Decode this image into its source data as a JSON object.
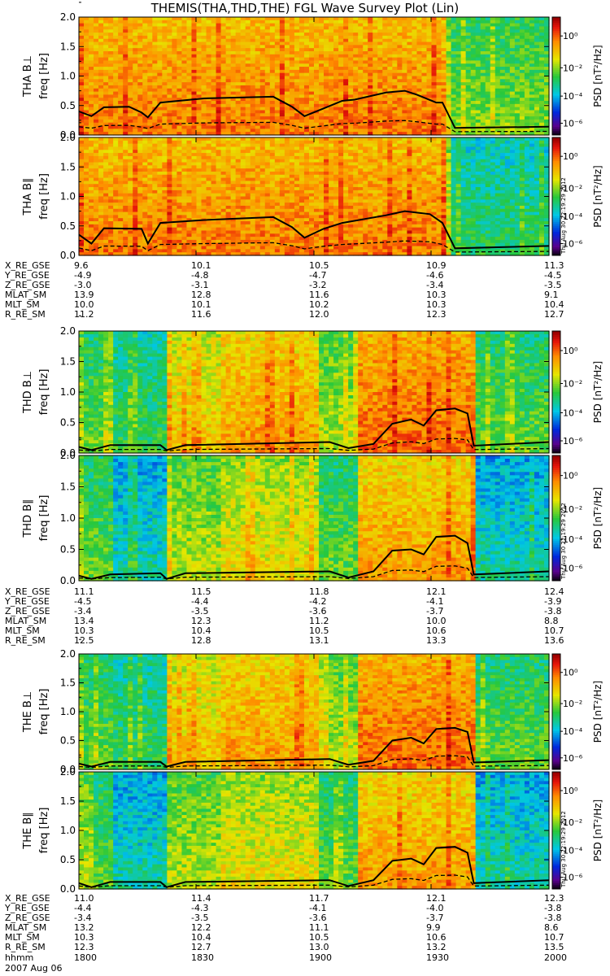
{
  "title": "THEMIS(THA,THD,THE) FGL Wave Survey Plot (Lin)",
  "colorbar_label": "PSD [nT²/Hz]",
  "colorbar_ticks": [
    "10⁰",
    "10⁻²",
    "10⁻⁴",
    "10⁻⁶"
  ],
  "y_axis_label": "freq [Hz]",
  "y_ticks": [
    "0.0",
    "0.5",
    "1.0",
    "1.5",
    "2.0"
  ],
  "stamp": "Thu Aug 30 22:19:29 2012",
  "date_label": "2007 Aug 06",
  "x_row_label": "hhmm",
  "x_times": [
    "1800",
    "1830",
    "1900",
    "1930",
    "2000"
  ],
  "chart_data": [
    {
      "type": "heatmap",
      "panels": [
        {
          "id": "THA_perp",
          "probe_label": "THA B⊥",
          "ylim": [
            0,
            2.0
          ],
          "ylabel": "freq [Hz]",
          "line_solid": [
            [
              0,
              0.4
            ],
            [
              2,
              0.32
            ],
            [
              4,
              0.47
            ],
            [
              8,
              0.48
            ],
            [
              10,
              0.38
            ],
            [
              11,
              0.3
            ],
            [
              13,
              0.55
            ],
            [
              20,
              0.62
            ],
            [
              31,
              0.65
            ],
            [
              34,
              0.48
            ],
            [
              36,
              0.32
            ],
            [
              39,
              0.45
            ],
            [
              42,
              0.58
            ],
            [
              44,
              0.6
            ],
            [
              49,
              0.72
            ],
            [
              52,
              0.75
            ],
            [
              54,
              0.68
            ],
            [
              57,
              0.55
            ],
            [
              58,
              0.55
            ],
            [
              60,
              0.12
            ],
            [
              75,
              0.14
            ]
          ]
        },
        {
          "id": "THA_par",
          "probe_label": "THA B∥",
          "ylim": [
            0,
            2.0
          ],
          "ylabel": "freq [Hz]",
          "line_solid": [
            [
              0,
              0.35
            ],
            [
              2,
              0.2
            ],
            [
              4,
              0.46
            ],
            [
              10,
              0.45
            ],
            [
              11,
              0.2
            ],
            [
              13,
              0.55
            ],
            [
              20,
              0.6
            ],
            [
              31,
              0.65
            ],
            [
              34,
              0.48
            ],
            [
              36,
              0.3
            ],
            [
              39,
              0.45
            ],
            [
              42,
              0.55
            ],
            [
              49,
              0.68
            ],
            [
              52,
              0.75
            ],
            [
              56,
              0.7
            ],
            [
              58,
              0.55
            ],
            [
              60,
              0.12
            ],
            [
              75,
              0.16
            ]
          ]
        },
        {
          "id": "THD_perp",
          "probe_label": "THD B⊥",
          "ylim": [
            0,
            2.0
          ],
          "ylabel": "freq [Hz]",
          "line_solid": [
            [
              0,
              0.1
            ],
            [
              2,
              0.05
            ],
            [
              5,
              0.13
            ],
            [
              13,
              0.13
            ],
            [
              14,
              0.05
            ],
            [
              17,
              0.13
            ],
            [
              40,
              0.18
            ],
            [
              43,
              0.08
            ],
            [
              47,
              0.15
            ],
            [
              50,
              0.48
            ],
            [
              53,
              0.55
            ],
            [
              55,
              0.45
            ],
            [
              57,
              0.7
            ],
            [
              60,
              0.73
            ],
            [
              62,
              0.65
            ],
            [
              63,
              0.12
            ],
            [
              75,
              0.18
            ]
          ]
        },
        {
          "id": "THD_par",
          "probe_label": "THD B∥",
          "ylim": [
            0,
            2.0
          ],
          "ylabel": "freq [Hz]",
          "line_solid": [
            [
              0,
              0.08
            ],
            [
              2,
              0.03
            ],
            [
              5,
              0.1
            ],
            [
              13,
              0.12
            ],
            [
              14,
              0.03
            ],
            [
              17,
              0.12
            ],
            [
              40,
              0.15
            ],
            [
              43,
              0.05
            ],
            [
              47,
              0.15
            ],
            [
              50,
              0.48
            ],
            [
              53,
              0.5
            ],
            [
              55,
              0.42
            ],
            [
              57,
              0.7
            ],
            [
              60,
              0.72
            ],
            [
              62,
              0.6
            ],
            [
              63,
              0.1
            ],
            [
              75,
              0.15
            ]
          ]
        },
        {
          "id": "THE_perp",
          "probe_label": "THE B⊥",
          "ylim": [
            0,
            2.0
          ],
          "ylabel": "freq [Hz]",
          "line_solid": [
            [
              0,
              0.1
            ],
            [
              2,
              0.05
            ],
            [
              5,
              0.13
            ],
            [
              13,
              0.13
            ],
            [
              14,
              0.05
            ],
            [
              17,
              0.13
            ],
            [
              40,
              0.18
            ],
            [
              43,
              0.08
            ],
            [
              47,
              0.15
            ],
            [
              50,
              0.5
            ],
            [
              53,
              0.55
            ],
            [
              55,
              0.45
            ],
            [
              57,
              0.7
            ],
            [
              60,
              0.72
            ],
            [
              62,
              0.65
            ],
            [
              63,
              0.12
            ],
            [
              75,
              0.16
            ]
          ]
        },
        {
          "id": "THE_par",
          "probe_label": "THE B∥",
          "ylim": [
            0,
            2.0
          ],
          "ylabel": "freq [Hz]",
          "line_solid": [
            [
              0,
              0.1
            ],
            [
              2,
              0.03
            ],
            [
              5,
              0.12
            ],
            [
              13,
              0.12
            ],
            [
              14,
              0.03
            ],
            [
              17,
              0.12
            ],
            [
              40,
              0.15
            ],
            [
              43,
              0.05
            ],
            [
              47,
              0.15
            ],
            [
              50,
              0.48
            ],
            [
              53,
              0.52
            ],
            [
              55,
              0.42
            ],
            [
              57,
              0.7
            ],
            [
              60,
              0.72
            ],
            [
              62,
              0.62
            ],
            [
              63,
              0.1
            ],
            [
              75,
              0.15
            ]
          ]
        }
      ],
      "xlim": [
        0,
        75
      ],
      "colorbar": {
        "scale": "log",
        "range": [
          "1e-6",
          "1e1"
        ]
      }
    }
  ],
  "orbit_blocks": [
    {
      "rows": [
        {
          "label": "X_RE_GSE",
          "values": [
            "9.6",
            "10.1",
            "10.5",
            "10.9",
            "11.3"
          ]
        },
        {
          "label": "Y_RE_GSE",
          "values": [
            "-4.9",
            "-4.8",
            "-4.7",
            "-4.6",
            "-4.5"
          ]
        },
        {
          "label": "Z_RE_GSE",
          "values": [
            "-3.0",
            "-3.1",
            "-3.2",
            "-3.4",
            "-3.5"
          ]
        },
        {
          "label": "MLAT_SM",
          "values": [
            "13.9",
            "12.8",
            "11.6",
            "10.3",
            "9.1"
          ]
        },
        {
          "label": "MLT_SM",
          "values": [
            "10.0",
            "10.1",
            "10.2",
            "10.3",
            "10.4"
          ]
        },
        {
          "label": "R_RE_SM",
          "values": [
            "11.2",
            "11.6",
            "12.0",
            "12.3",
            "12.7"
          ]
        }
      ]
    },
    {
      "rows": [
        {
          "label": "X_RE_GSE",
          "values": [
            "11.1",
            "11.5",
            "11.8",
            "12.1",
            "12.4"
          ]
        },
        {
          "label": "Y_RE_GSE",
          "values": [
            "-4.5",
            "-4.4",
            "-4.2",
            "-4.1",
            "-3.9"
          ]
        },
        {
          "label": "Z_RE_GSE",
          "values": [
            "-3.4",
            "-3.5",
            "-3.6",
            "-3.7",
            "-3.8"
          ]
        },
        {
          "label": "MLAT_SM",
          "values": [
            "13.4",
            "12.3",
            "11.2",
            "10.0",
            "8.8"
          ]
        },
        {
          "label": "MLT_SM",
          "values": [
            "10.3",
            "10.4",
            "10.5",
            "10.6",
            "10.7"
          ]
        },
        {
          "label": "R_RE_SM",
          "values": [
            "12.5",
            "12.8",
            "13.1",
            "13.3",
            "13.6"
          ]
        }
      ]
    },
    {
      "rows": [
        {
          "label": "X_RE_GSE",
          "values": [
            "11.0",
            "11.4",
            "11.7",
            "12.1",
            "12.3"
          ]
        },
        {
          "label": "Y_RE_GSE",
          "values": [
            "-4.4",
            "-4.3",
            "-4.1",
            "-4.0",
            "-3.8"
          ]
        },
        {
          "label": "Z_RE_GSE",
          "values": [
            "-3.4",
            "-3.5",
            "-3.6",
            "-3.7",
            "-3.8"
          ]
        },
        {
          "label": "MLAT_SM",
          "values": [
            "13.2",
            "12.2",
            "11.1",
            "9.9",
            "8.6"
          ]
        },
        {
          "label": "MLT_SM",
          "values": [
            "10.3",
            "10.4",
            "10.5",
            "10.6",
            "10.7"
          ]
        },
        {
          "label": "R_RE_SM",
          "values": [
            "12.3",
            "12.7",
            "13.0",
            "13.2",
            "13.5"
          ]
        }
      ]
    }
  ]
}
